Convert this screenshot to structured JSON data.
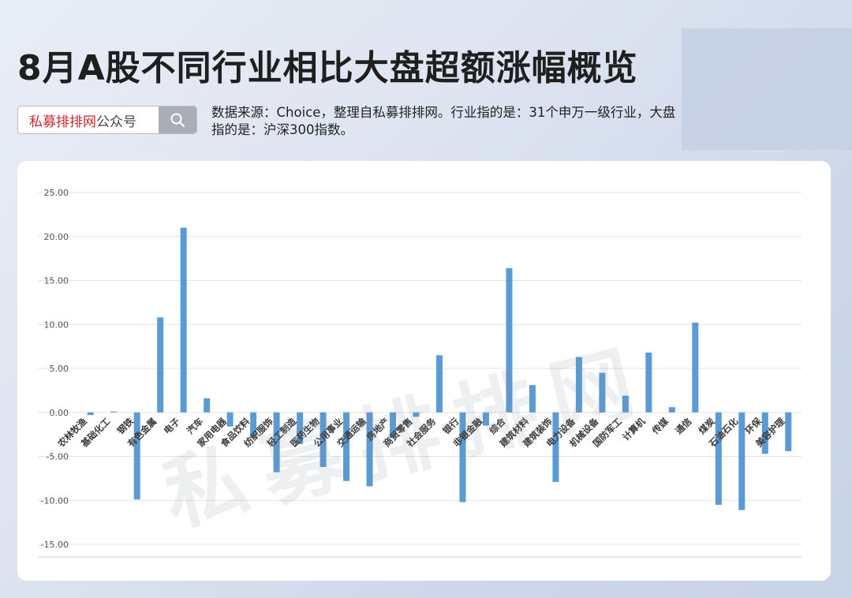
{
  "header": {
    "title": "8月A股不同行业相比大盘超额涨幅概览",
    "search_brand": "私募排排网",
    "search_suffix": "公众号",
    "source_note": "数据来源：Choice，整理自私募排排网。行业指的是：31个申万一级行业，大盘指的是：沪深300指数。"
  },
  "watermark": "私募排排网",
  "colors": {
    "bar": "#5b9bd5",
    "grid": "#e3e3e3",
    "axis_text": "#555555",
    "brand": "#c8272f"
  },
  "icons": {
    "search": "search-icon"
  },
  "chart_data": {
    "type": "bar",
    "title": "",
    "xlabel": "",
    "ylabel": "",
    "ylim": [
      -15,
      25
    ],
    "yticks": [
      "-15.00",
      "-10.00",
      "-5.00",
      "0.00",
      "5.00",
      "10.00",
      "15.00",
      "20.00",
      "25.00"
    ],
    "grid": true,
    "legend": "none",
    "categories": [
      "农林牧渔",
      "基础化工",
      "钢铁",
      "有色金属",
      "电子",
      "汽车",
      "家用电器",
      "食品饮料",
      "纺织服饰",
      "轻工制造",
      "医药生物",
      "公用事业",
      "交通运输",
      "房地产",
      "商贸零售",
      "社会服务",
      "银行",
      "非银金融",
      "综合",
      "建筑材料",
      "建筑装饰",
      "电力设备",
      "机械设备",
      "国防军工",
      "计算机",
      "传媒",
      "通信",
      "煤炭",
      "石油石化",
      "环保",
      "美容护理"
    ],
    "values": [
      -0.3,
      0.1,
      -9.9,
      10.8,
      21.0,
      1.6,
      -1.6,
      -2.9,
      -6.8,
      -3.6,
      -6.2,
      -7.8,
      -8.4,
      -2.9,
      -0.5,
      6.5,
      -10.2,
      -1.5,
      16.4,
      3.1,
      -7.9,
      6.3,
      4.5,
      1.9,
      6.8,
      0.6,
      10.2,
      -10.5,
      -11.1,
      -4.7,
      -4.4
    ]
  }
}
